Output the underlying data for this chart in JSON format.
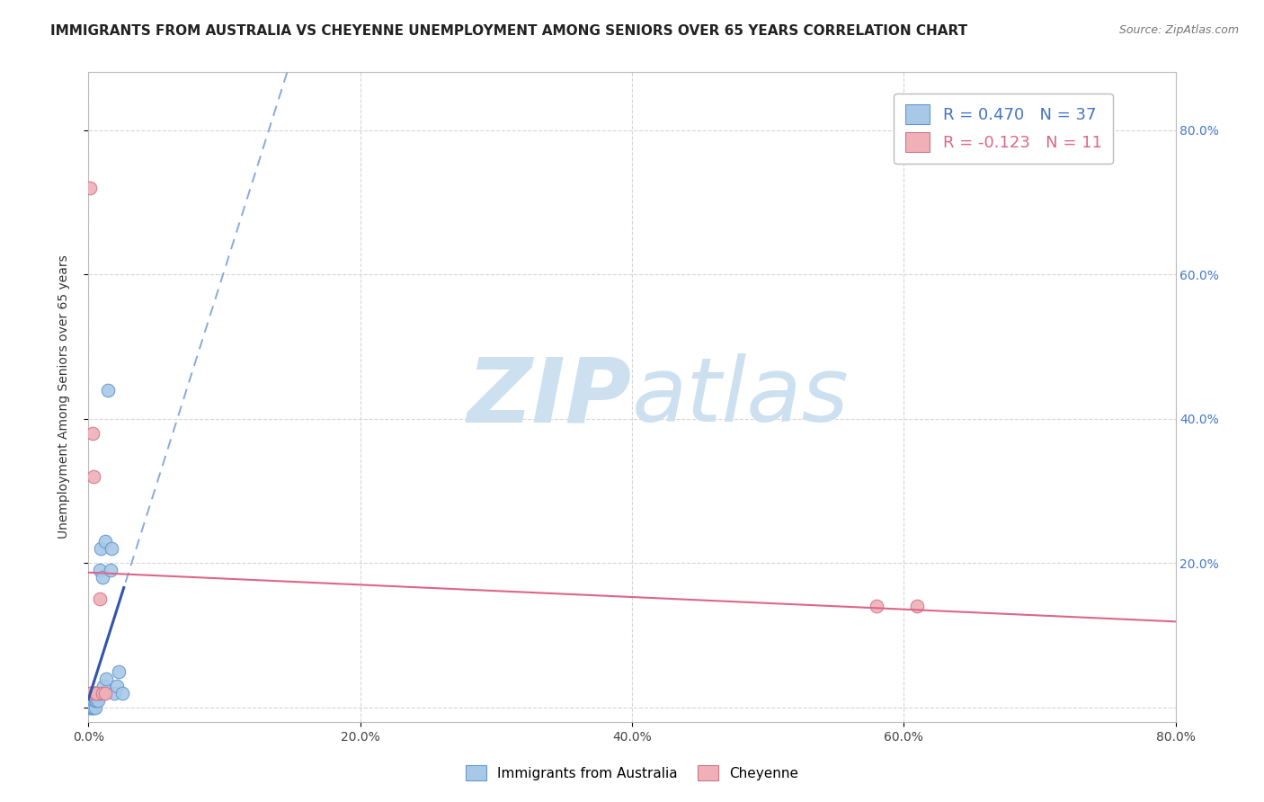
{
  "title": "IMMIGRANTS FROM AUSTRALIA VS CHEYENNE UNEMPLOYMENT AMONG SENIORS OVER 65 YEARS CORRELATION CHART",
  "source_text": "Source: ZipAtlas.com",
  "ylabel": "Unemployment Among Seniors over 65 years",
  "blue_label": "Immigrants from Australia",
  "pink_label": "Cheyenne",
  "blue_R": 0.47,
  "blue_N": 37,
  "pink_R": -0.123,
  "pink_N": 11,
  "blue_scatter_x": [
    0.001,
    0.001,
    0.001,
    0.001,
    0.002,
    0.002,
    0.002,
    0.002,
    0.002,
    0.003,
    0.003,
    0.003,
    0.003,
    0.004,
    0.004,
    0.004,
    0.005,
    0.005,
    0.005,
    0.006,
    0.006,
    0.007,
    0.007,
    0.008,
    0.008,
    0.009,
    0.01,
    0.011,
    0.012,
    0.013,
    0.014,
    0.016,
    0.017,
    0.019,
    0.021,
    0.022,
    0.025
  ],
  "blue_scatter_y": [
    0.0,
    0.0,
    0.01,
    0.01,
    0.0,
    0.01,
    0.01,
    0.02,
    0.02,
    0.0,
    0.0,
    0.01,
    0.02,
    0.0,
    0.01,
    0.02,
    0.0,
    0.01,
    0.02,
    0.01,
    0.02,
    0.01,
    0.02,
    0.02,
    0.19,
    0.22,
    0.18,
    0.03,
    0.23,
    0.04,
    0.44,
    0.19,
    0.22,
    0.02,
    0.03,
    0.05,
    0.02
  ],
  "pink_scatter_x": [
    0.001,
    0.002,
    0.003,
    0.004,
    0.005,
    0.006,
    0.008,
    0.01,
    0.012,
    0.58,
    0.61
  ],
  "pink_scatter_y": [
    0.72,
    0.02,
    0.38,
    0.32,
    0.02,
    0.02,
    0.15,
    0.02,
    0.02,
    0.14,
    0.14
  ],
  "xlim": [
    0.0,
    0.8
  ],
  "ylim": [
    -0.02,
    0.88
  ],
  "xticks": [
    0.0,
    0.2,
    0.4,
    0.6,
    0.8
  ],
  "yticks": [
    0.0,
    0.2,
    0.4,
    0.6,
    0.8
  ],
  "xtick_labels": [
    "0.0%",
    "20.0%",
    "40.0%",
    "60.0%",
    "80.0%"
  ],
  "ytick_labels_left": [
    "",
    "",
    "",
    "",
    ""
  ],
  "ytick_labels_right": [
    "",
    "20.0%",
    "40.0%",
    "60.0%",
    "80.0%"
  ],
  "blue_color": "#a8c8e8",
  "blue_edge_color": "#6699cc",
  "pink_color": "#f0b0b8",
  "pink_edge_color": "#cc7788",
  "blue_line_color": "#3355aa",
  "blue_dashed_color": "#88aadd",
  "pink_line_color": "#dd6688",
  "grid_color": "#cccccc",
  "watermark_color": "#cce0f0",
  "title_fontsize": 11,
  "source_fontsize": 9,
  "legend_blue_color": "#4472c4",
  "legend_pink_color": "#dd6688",
  "tick_color_blue": "#4477cc"
}
